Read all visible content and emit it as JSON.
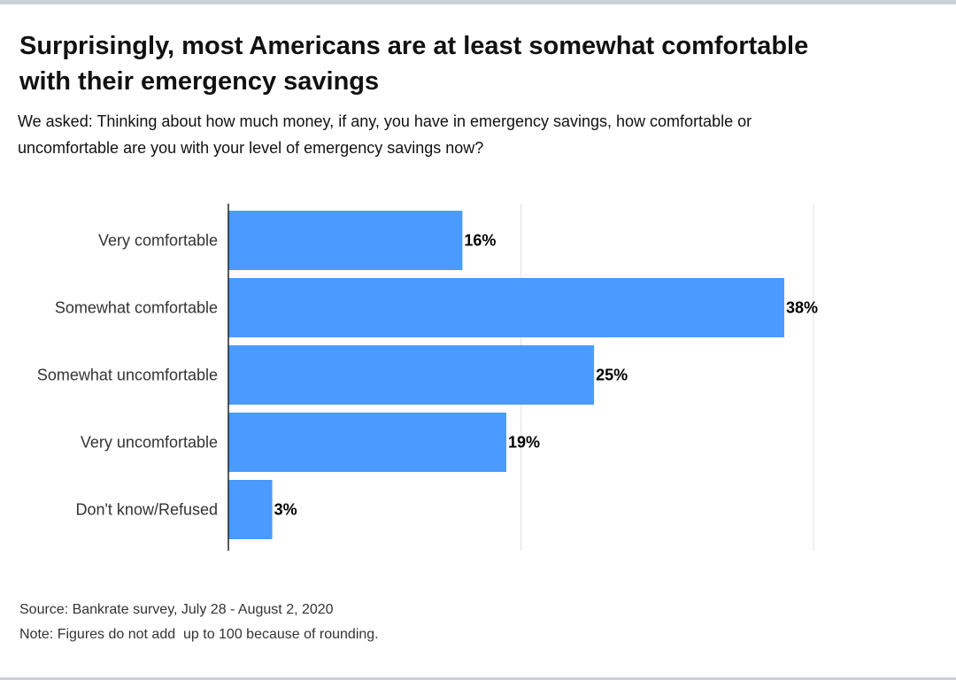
{
  "title": "Surprisingly, most Americans are at least somewhat comfortable with their emergency savings",
  "subtitle": "We asked: Thinking about how much money, if any, you have in emergency savings, how comfortable or uncomfortable are you with your level of emergency savings now?",
  "source": "Source: Bankrate survey, July 28 - August 2, 2020",
  "note": "Note: Figures do not add  up to 100 because of rounding.",
  "chart_data": {
    "type": "bar",
    "orientation": "horizontal",
    "categories": [
      "Very comfortable",
      "Somewhat comfortable",
      "Somewhat uncomfortable",
      "Very uncomfortable",
      "Don't know/Refused"
    ],
    "values": [
      16,
      38,
      25,
      19,
      3
    ],
    "data_labels": [
      "16%",
      "38%",
      "25%",
      "19%",
      "3%"
    ],
    "xlim": [
      0,
      40
    ],
    "grid": true,
    "bar_color": "#4a9aff"
  }
}
